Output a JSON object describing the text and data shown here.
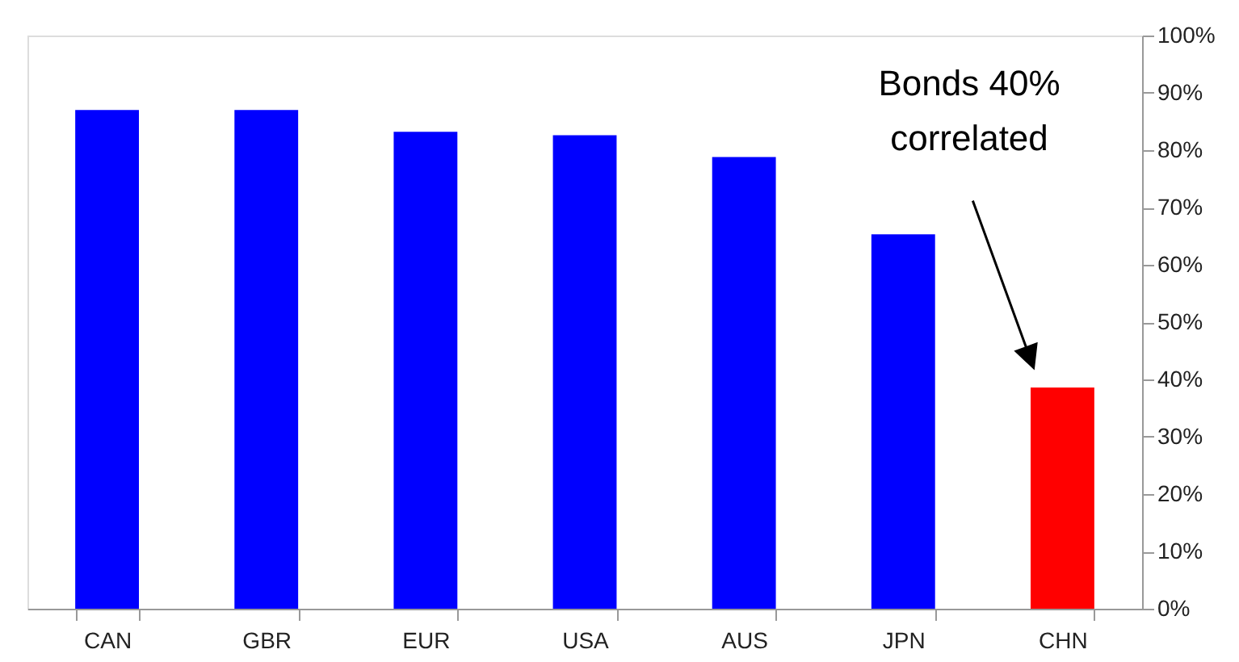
{
  "chart_data": {
    "type": "bar",
    "categories": [
      "CAN",
      "GBR",
      "EUR",
      "USA",
      "AUS",
      "JPN",
      "CHN"
    ],
    "values": [
      87.0,
      87.0,
      83.2,
      82.6,
      78.8,
      65.3,
      38.6
    ],
    "colors": [
      "#0000ff",
      "#0000ff",
      "#0000ff",
      "#0000ff",
      "#0000ff",
      "#0000ff",
      "#ff0000"
    ],
    "ylim": [
      0,
      100
    ],
    "yticks": [
      {
        "value": 0,
        "label": "0%"
      },
      {
        "value": 10,
        "label": "10%"
      },
      {
        "value": 20,
        "label": "20%"
      },
      {
        "value": 30,
        "label": "30%"
      },
      {
        "value": 40,
        "label": "40%"
      },
      {
        "value": 50,
        "label": "50%"
      },
      {
        "value": 60,
        "label": "60%"
      },
      {
        "value": 70,
        "label": "70%"
      },
      {
        "value": 80,
        "label": "80%"
      },
      {
        "value": 90,
        "label": "90%"
      },
      {
        "value": 100,
        "label": "100%"
      }
    ],
    "grid": false,
    "annotations": [
      "Bonds 40%\ncorrelated"
    ]
  }
}
